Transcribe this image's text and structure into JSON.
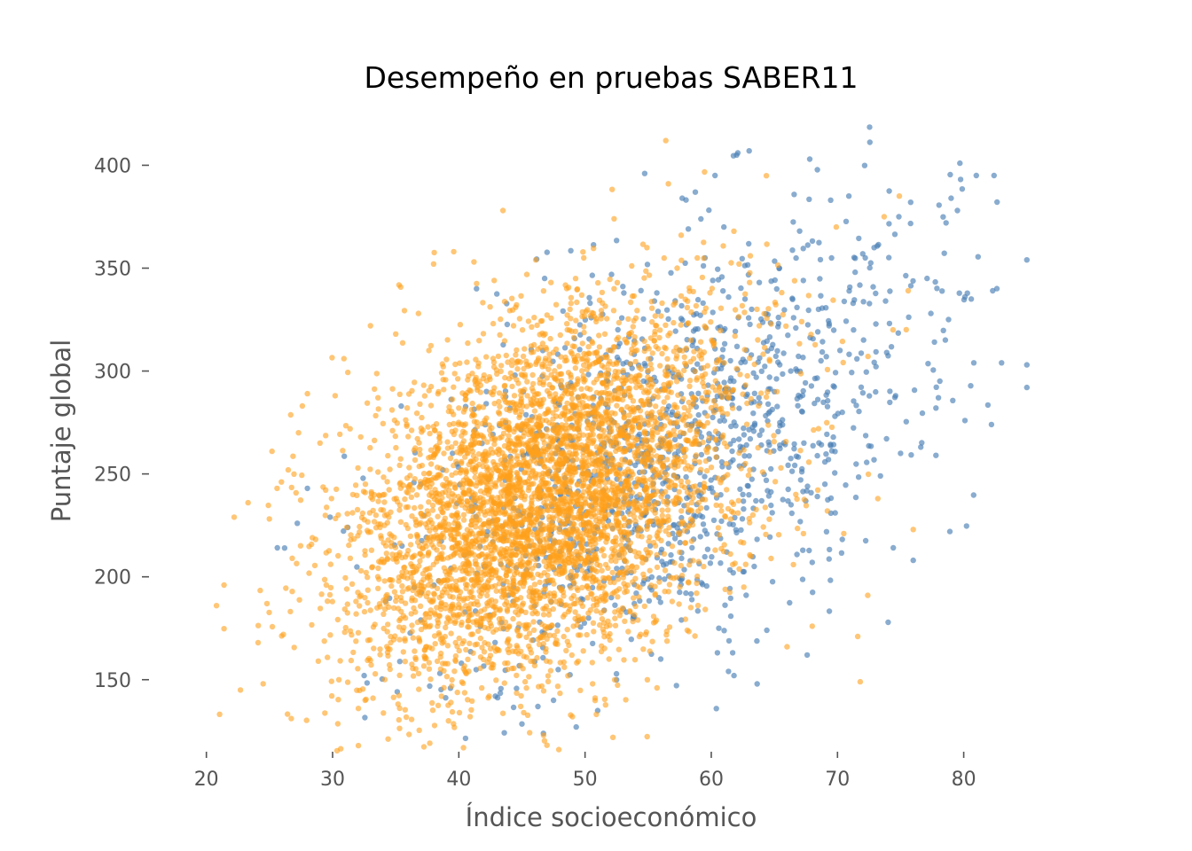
{
  "chart_data": {
    "type": "scatter",
    "title": "Desempeño en pruebas SABER11",
    "xlabel": "Índice socioeconómico",
    "ylabel": "Puntaje global",
    "xlim": [
      17,
      86
    ],
    "ylim": [
      115,
      420
    ],
    "xticks": [
      20,
      30,
      40,
      50,
      60,
      70,
      80
    ],
    "yticks": [
      150,
      200,
      250,
      300,
      350,
      400
    ],
    "grid": false,
    "legend": "none",
    "series": [
      {
        "color": "#4a7fb5",
        "alpha": 0.65,
        "n_points_shown": 1300,
        "points": [
          [
            85.0,
            354
          ],
          [
            85.0,
            303
          ],
          [
            85.0,
            292
          ],
          [
            83.0,
            304
          ],
          [
            82.4,
            395
          ],
          [
            82.3,
            339
          ],
          [
            82.2,
            274
          ],
          [
            81.0,
            395
          ],
          [
            80.8,
            304
          ],
          [
            80.6,
            335
          ],
          [
            80.1,
            336
          ],
          [
            79.7,
            401
          ],
          [
            79.5,
            378
          ],
          [
            79.0,
            384
          ],
          [
            78.8,
            325
          ],
          [
            78.6,
            372
          ],
          [
            78.9,
            222
          ],
          [
            78.0,
            287
          ],
          [
            77.8,
            282
          ],
          [
            77.8,
            259
          ],
          [
            77.4,
            328
          ],
          [
            77.1,
            345
          ],
          [
            76.6,
            263
          ],
          [
            76.0,
            208
          ],
          [
            75.8,
            382
          ],
          [
            75.0,
            260
          ],
          [
            74.6,
            288
          ],
          [
            73.9,
            309
          ],
          [
            73.4,
            249
          ],
          [
            72.9,
            360
          ],
          [
            72.2,
            355
          ],
          [
            71.4,
            348
          ],
          [
            70.9,
            385
          ],
          [
            70.2,
            310
          ],
          [
            69.8,
            278
          ],
          [
            69.0,
            245
          ],
          [
            68.5,
            330
          ],
          [
            68.0,
            207
          ],
          [
            67.8,
            403
          ],
          [
            67.6,
            162
          ],
          [
            67.0,
            368
          ],
          [
            66.8,
            300
          ],
          [
            66.3,
            300
          ],
          [
            65.4,
            350
          ],
          [
            65.0,
            290
          ],
          [
            64.6,
            264
          ],
          [
            64.4,
            174
          ],
          [
            63.8,
            343
          ],
          [
            63.2,
            330
          ],
          [
            63.0,
            407
          ],
          [
            62.5,
            240
          ],
          [
            62.1,
            406
          ],
          [
            61.8,
            152
          ],
          [
            61.0,
            370
          ],
          [
            60.6,
            175
          ],
          [
            60.4,
            136
          ],
          [
            60.3,
            395
          ],
          [
            59.5,
            355
          ],
          [
            58.7,
            255
          ],
          [
            58.1,
            222
          ],
          [
            57.7,
            384
          ],
          [
            57.0,
            225
          ],
          [
            56.6,
            300
          ],
          [
            56.0,
            160
          ],
          [
            55.5,
            334
          ],
          [
            55.2,
            306
          ],
          [
            54.7,
            230
          ],
          [
            54.2,
            256
          ],
          [
            53.9,
            187
          ],
          [
            53.0,
            270
          ],
          [
            52.5,
            150
          ],
          [
            51.8,
            295
          ],
          [
            51.0,
            135
          ],
          [
            50.4,
            333
          ],
          [
            49.9,
            262
          ],
          [
            49.3,
            127
          ],
          [
            48.6,
            228
          ],
          [
            48.0,
            205
          ],
          [
            47.5,
            140
          ],
          [
            46.8,
            345
          ],
          [
            46.4,
            178
          ],
          [
            45.6,
            215
          ],
          [
            45.0,
            225
          ],
          [
            44.3,
            188
          ],
          [
            43.7,
            275
          ],
          [
            42.9,
            142
          ],
          [
            42.0,
            205
          ],
          [
            41.4,
            340
          ],
          [
            40.2,
            158
          ],
          [
            39.5,
            260
          ],
          [
            38.4,
            198
          ],
          [
            37.0,
            245
          ],
          [
            35.5,
            215
          ],
          [
            34.2,
            188
          ],
          [
            32.5,
            152
          ],
          [
            31.2,
            224
          ],
          [
            29.8,
            229
          ],
          [
            28.0,
            243
          ],
          [
            27.2,
            226
          ],
          [
            26.2,
            214
          ]
        ]
      },
      {
        "color": "#ffa01a",
        "alpha": 0.6,
        "n_points_shown": 4700,
        "points": [
          [
            56.4,
            412
          ],
          [
            56.6,
            391
          ],
          [
            43.5,
            378
          ],
          [
            52.3,
            374
          ],
          [
            20.8,
            186
          ],
          [
            21.4,
            196
          ],
          [
            22.2,
            229
          ],
          [
            22.7,
            145
          ],
          [
            23.3,
            236
          ],
          [
            24.1,
            168
          ],
          [
            24.5,
            148
          ],
          [
            24.8,
            187
          ],
          [
            25.2,
            261
          ],
          [
            25.6,
            243
          ],
          [
            26.1,
            172
          ],
          [
            26.8,
            209
          ],
          [
            27.3,
            270
          ],
          [
            27.6,
            283
          ],
          [
            28.0,
            289
          ],
          [
            28.4,
            219
          ],
          [
            29.0,
            265
          ],
          [
            29.5,
            196
          ],
          [
            30.2,
            288
          ],
          [
            30.5,
            150
          ],
          [
            30.9,
            306
          ],
          [
            31.4,
            209
          ],
          [
            32.0,
            220
          ],
          [
            32.6,
            245
          ],
          [
            33.0,
            322
          ],
          [
            33.2,
            141
          ],
          [
            33.6,
            287
          ],
          [
            34.1,
            240
          ],
          [
            34.6,
            168
          ],
          [
            35.0,
            318
          ],
          [
            35.4,
            190
          ],
          [
            35.9,
            248
          ],
          [
            36.3,
            205
          ],
          [
            36.8,
            328
          ],
          [
            37.1,
            178
          ],
          [
            37.5,
            232
          ],
          [
            38.0,
            352
          ],
          [
            38.3,
            159
          ],
          [
            38.8,
            291
          ],
          [
            39.2,
            203
          ],
          [
            39.6,
            358
          ],
          [
            40.0,
            185
          ],
          [
            40.4,
            266
          ],
          [
            40.9,
            132
          ],
          [
            41.2,
            353
          ],
          [
            41.6,
            210
          ],
          [
            42.0,
            298
          ],
          [
            42.4,
            142
          ],
          [
            42.8,
            344
          ],
          [
            43.2,
            212
          ],
          [
            43.6,
            254
          ],
          [
            44.0,
            176
          ],
          [
            44.5,
            331
          ],
          [
            44.9,
            137
          ],
          [
            45.2,
            291
          ],
          [
            45.6,
            201
          ],
          [
            46.1,
            354
          ],
          [
            46.5,
            226
          ],
          [
            46.9,
            165
          ],
          [
            47.3,
            343
          ],
          [
            47.8,
            248
          ],
          [
            48.1,
            188
          ],
          [
            48.6,
            320
          ],
          [
            49.0,
            132
          ],
          [
            49.4,
            272
          ],
          [
            49.9,
            355
          ],
          [
            50.2,
            210
          ],
          [
            50.6,
            148
          ],
          [
            51.1,
            305
          ],
          [
            51.4,
            238
          ],
          [
            51.9,
            160
          ],
          [
            52.3,
            340
          ],
          [
            52.7,
            262
          ],
          [
            53.2,
            195
          ],
          [
            53.5,
            318
          ],
          [
            54.0,
            227
          ],
          [
            54.4,
            172
          ],
          [
            54.9,
            360
          ],
          [
            55.3,
            280
          ],
          [
            55.7,
            146
          ],
          [
            56.1,
            333
          ],
          [
            56.5,
            257
          ],
          [
            56.9,
            188
          ],
          [
            57.3,
            350
          ],
          [
            57.8,
            276
          ],
          [
            58.1,
            174
          ],
          [
            58.6,
            306
          ],
          [
            59.0,
            236
          ],
          [
            59.4,
            205
          ],
          [
            59.9,
            338
          ],
          [
            60.3,
            262
          ],
          [
            60.8,
            232
          ],
          [
            61.2,
            292
          ],
          [
            61.7,
            206
          ],
          [
            62.2,
            352
          ],
          [
            62.7,
            255
          ],
          [
            63.3,
            230
          ],
          [
            63.8,
            322
          ],
          [
            64.6,
            228
          ],
          [
            65.2,
            290
          ],
          [
            66.0,
            166
          ],
          [
            66.7,
            240
          ],
          [
            67.3,
            221
          ],
          [
            68.0,
            176
          ],
          [
            68.5,
            272
          ],
          [
            69.2,
            232
          ],
          [
            69.9,
            370
          ],
          [
            70.5,
            221
          ],
          [
            71.6,
            171
          ],
          [
            71.8,
            149
          ],
          [
            72.4,
            191
          ],
          [
            73.2,
            238
          ],
          [
            73.7,
            375
          ],
          [
            74.4,
            320
          ],
          [
            74.9,
            385
          ],
          [
            75.6,
            339
          ],
          [
            76.0,
            223
          ]
        ]
      }
    ]
  }
}
